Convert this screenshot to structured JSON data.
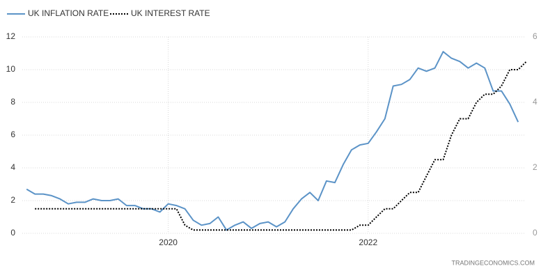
{
  "chart_data": {
    "type": "line",
    "source": "TRADINGECONOMICS.COM",
    "xlim": [
      2018.54,
      2023.68
    ],
    "xticks": [
      2020,
      2022
    ],
    "ylim": [
      0,
      12
    ],
    "yticks": [
      0,
      2,
      4,
      6,
      8,
      10,
      12
    ],
    "y2lim": [
      0,
      6
    ],
    "y2ticks": [
      0,
      2,
      4,
      6
    ],
    "grid": true,
    "legend": "top-left",
    "series": [
      {
        "name": "UK INFLATION RATE",
        "color": "#5b93c7",
        "style": "solid",
        "x": [
          2018.583,
          2018.667,
          2018.75,
          2018.833,
          2018.917,
          2019,
          2019.083,
          2019.167,
          2019.25,
          2019.333,
          2019.417,
          2019.5,
          2019.583,
          2019.667,
          2019.75,
          2019.833,
          2019.917,
          2020,
          2020.083,
          2020.167,
          2020.25,
          2020.333,
          2020.417,
          2020.5,
          2020.583,
          2020.667,
          2020.75,
          2020.833,
          2020.917,
          2021,
          2021.083,
          2021.167,
          2021.25,
          2021.333,
          2021.417,
          2021.5,
          2021.583,
          2021.667,
          2021.75,
          2021.833,
          2021.917,
          2022,
          2022.083,
          2022.167,
          2022.25,
          2022.333,
          2022.417,
          2022.5,
          2022.583,
          2022.667,
          2022.75,
          2022.833,
          2022.917,
          2023,
          2023.083,
          2023.167,
          2023.25,
          2023.333,
          2023.417,
          2023.5
        ],
        "values": [
          2.7,
          2.4,
          2.4,
          2.3,
          2.1,
          1.8,
          1.9,
          1.9,
          2.1,
          2.0,
          2.0,
          2.1,
          1.7,
          1.7,
          1.5,
          1.5,
          1.3,
          1.8,
          1.7,
          1.5,
          0.8,
          0.5,
          0.6,
          1.0,
          0.2,
          0.5,
          0.7,
          0.3,
          0.6,
          0.7,
          0.4,
          0.7,
          1.5,
          2.1,
          2.5,
          2.0,
          3.2,
          3.1,
          4.2,
          5.1,
          5.4,
          5.5,
          6.2,
          7.0,
          9.0,
          9.1,
          9.4,
          10.1,
          9.9,
          10.1,
          11.1,
          10.7,
          10.5,
          10.1,
          10.4,
          10.1,
          8.7,
          8.7,
          7.9,
          6.8
        ]
      },
      {
        "name": "UK INTEREST RATE",
        "color": "#000000",
        "style": "dotted",
        "axis": "y2",
        "x": [
          2018.667,
          2018.75,
          2018.833,
          2018.917,
          2019,
          2019.083,
          2019.167,
          2019.25,
          2019.333,
          2019.417,
          2019.5,
          2019.583,
          2019.667,
          2019.75,
          2019.833,
          2019.917,
          2020,
          2020.083,
          2020.167,
          2020.25,
          2020.333,
          2020.417,
          2020.5,
          2020.583,
          2020.667,
          2020.75,
          2020.833,
          2020.917,
          2021,
          2021.083,
          2021.167,
          2021.25,
          2021.333,
          2021.417,
          2021.5,
          2021.583,
          2021.667,
          2021.75,
          2021.833,
          2021.917,
          2022,
          2022.083,
          2022.167,
          2022.25,
          2022.333,
          2022.417,
          2022.5,
          2022.583,
          2022.667,
          2022.75,
          2022.833,
          2022.917,
          2023,
          2023.083,
          2023.167,
          2023.25,
          2023.333,
          2023.417,
          2023.5,
          2023.583
        ],
        "values": [
          0.75,
          0.75,
          0.75,
          0.75,
          0.75,
          0.75,
          0.75,
          0.75,
          0.75,
          0.75,
          0.75,
          0.75,
          0.75,
          0.75,
          0.75,
          0.75,
          0.75,
          0.75,
          0.25,
          0.1,
          0.1,
          0.1,
          0.1,
          0.1,
          0.1,
          0.1,
          0.1,
          0.1,
          0.1,
          0.1,
          0.1,
          0.1,
          0.1,
          0.1,
          0.1,
          0.1,
          0.1,
          0.1,
          0.1,
          0.25,
          0.25,
          0.5,
          0.75,
          0.75,
          1.0,
          1.25,
          1.25,
          1.75,
          2.25,
          2.25,
          3.0,
          3.5,
          3.5,
          4.0,
          4.25,
          4.25,
          4.5,
          5.0,
          5.0,
          5.25
        ]
      }
    ]
  }
}
